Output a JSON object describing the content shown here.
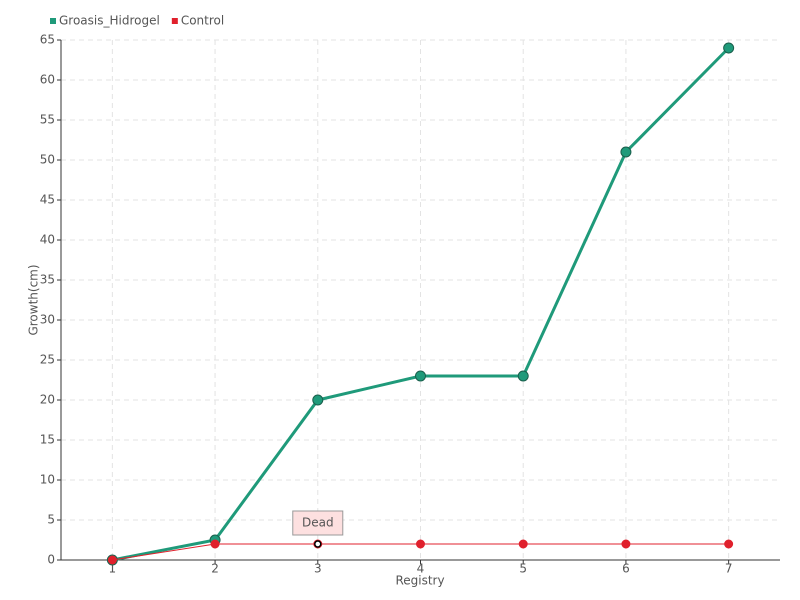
{
  "chart_data": {
    "type": "line",
    "x_label": "Registry",
    "y_label": "Growth(cm)",
    "categories": [
      "1",
      "2",
      "3",
      "4",
      "5",
      "6",
      "7"
    ],
    "series": [
      {
        "name": "Groasis_Hidrogel",
        "color": "#1f9a7a",
        "values": [
          0,
          2.5,
          20,
          23,
          23,
          51,
          64
        ]
      },
      {
        "name": "Control",
        "color": "#e0202c",
        "values": [
          0,
          2,
          2,
          2,
          2,
          2,
          2
        ]
      }
    ],
    "annotations": [
      {
        "text": "Dead",
        "x": "3",
        "y": 2
      }
    ],
    "ylim": [
      0,
      65
    ],
    "yticks": [
      0,
      5,
      10,
      15,
      20,
      25,
      30,
      35,
      40,
      45,
      50,
      55,
      60,
      65
    ],
    "grid": true,
    "legend": "top-left"
  }
}
